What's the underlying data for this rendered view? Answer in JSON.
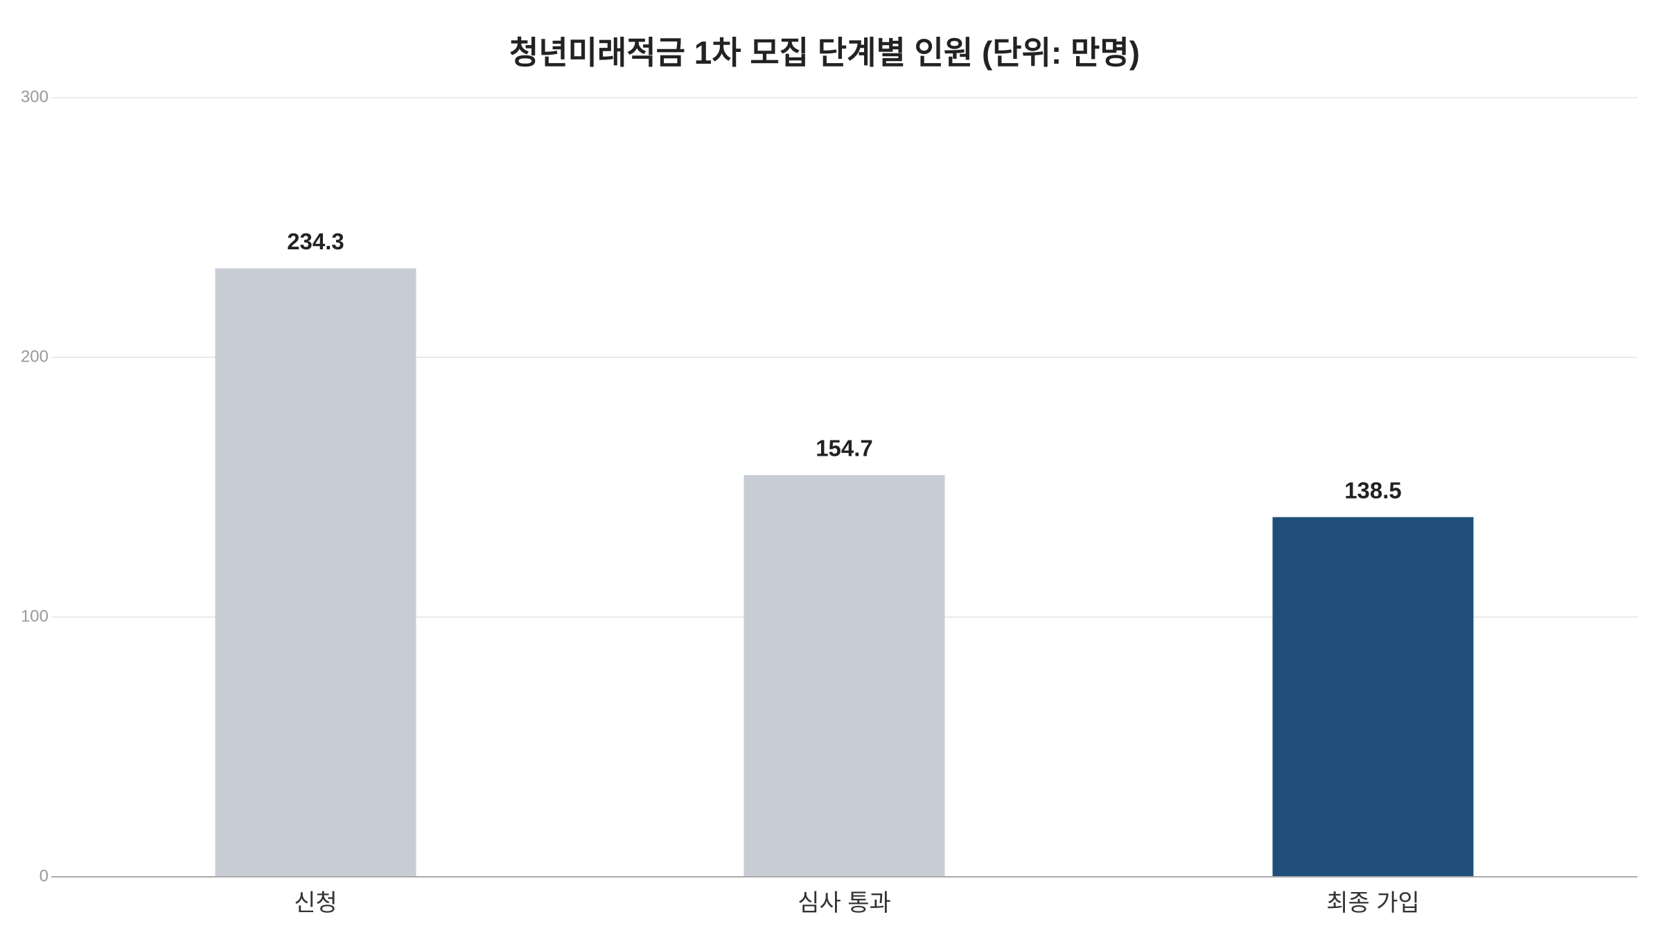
{
  "chart_data": {
    "type": "bar",
    "title": "청년미래적금 1차 모집 단계별 인원 (단위: 만명)",
    "categories": [
      "신청",
      "심사 통과",
      "최종 가입"
    ],
    "values": [
      234.3,
      154.7,
      138.5
    ],
    "colors": [
      "#c8cdd5",
      "#c8cdd5",
      "#1f4e79"
    ],
    "ylim": [
      0,
      300
    ],
    "yticks": [
      0,
      100,
      200,
      300
    ],
    "grid": true
  }
}
